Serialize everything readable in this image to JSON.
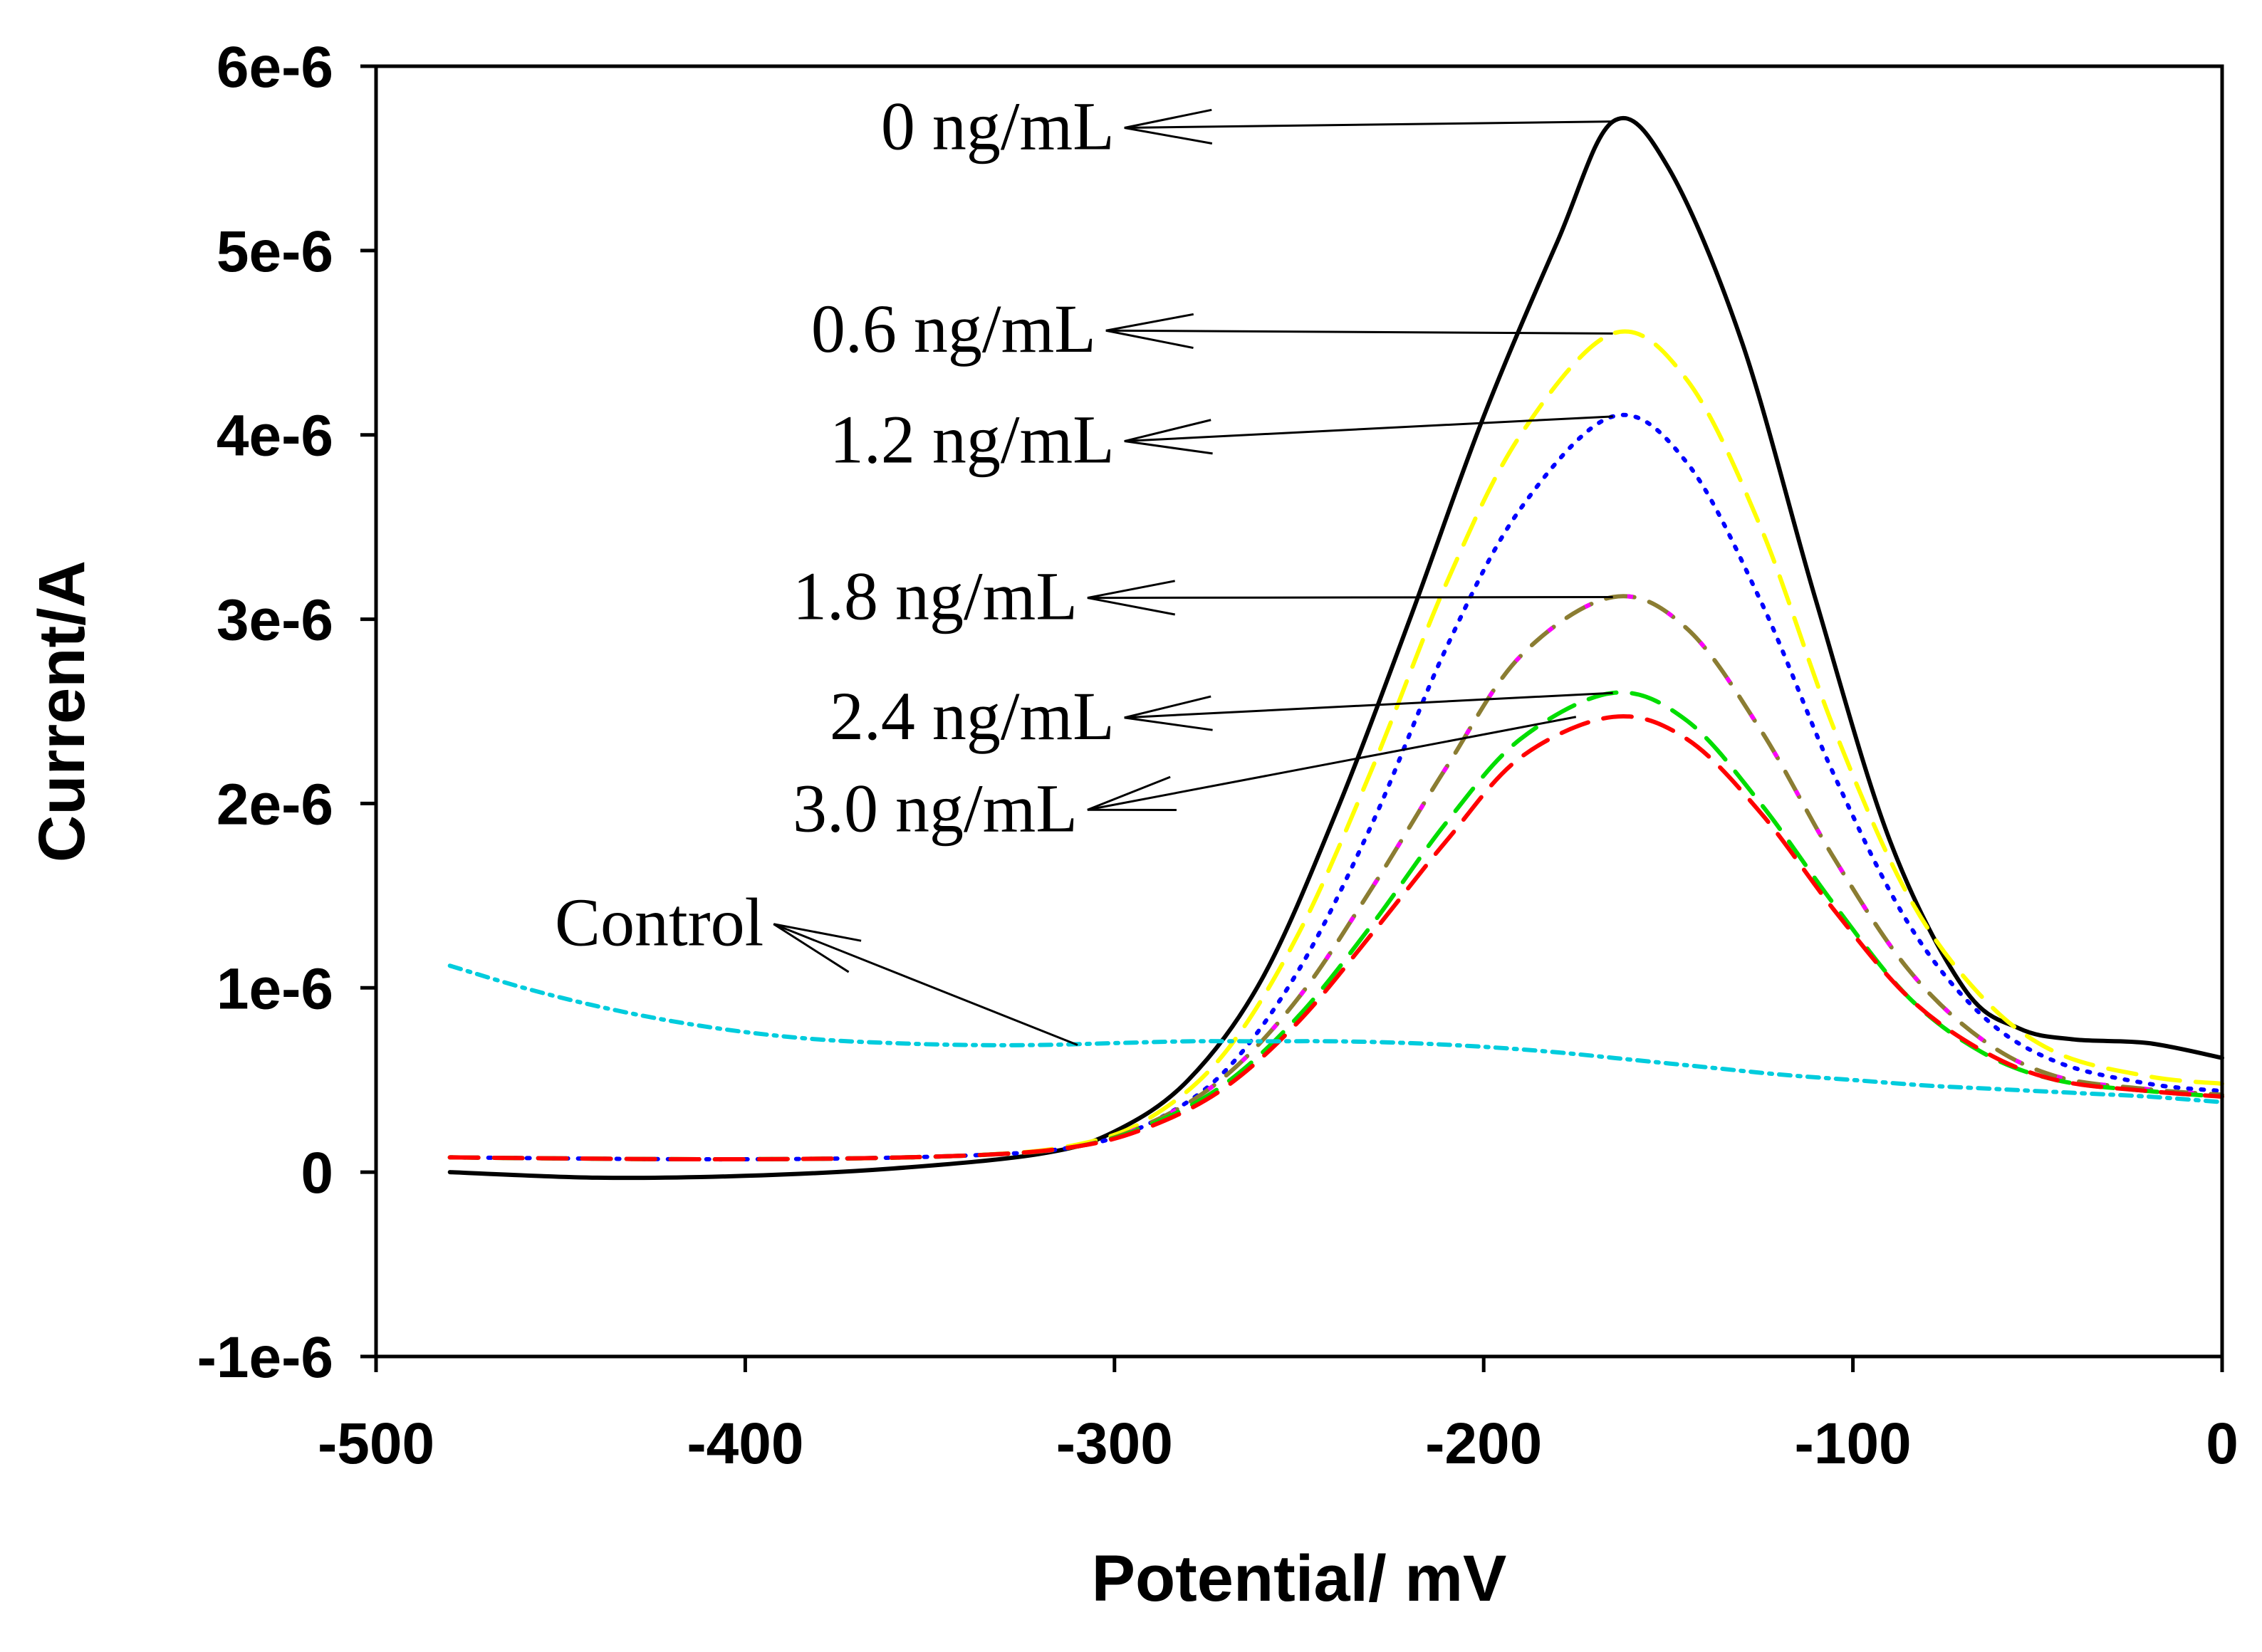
{
  "chart_data": {
    "type": "line",
    "title": "",
    "xlabel": "Potential/ mV",
    "ylabel": "Current/A",
    "xlim": [
      -500,
      0
    ],
    "ylim": [
      -1e-06,
      6e-06
    ],
    "x_ticks": [
      {
        "value": -500,
        "label": "-500"
      },
      {
        "value": -400,
        "label": "-400"
      },
      {
        "value": -300,
        "label": "-300"
      },
      {
        "value": -200,
        "label": "-200"
      },
      {
        "value": -100,
        "label": "-100"
      },
      {
        "value": 0,
        "label": "0"
      }
    ],
    "y_ticks": [
      {
        "value": -1e-06,
        "label": "-1e-6"
      },
      {
        "value": 0,
        "label": "0"
      },
      {
        "value": 1e-06,
        "label": "1e-6"
      },
      {
        "value": 2e-06,
        "label": "2e-6"
      },
      {
        "value": 3e-06,
        "label": "3e-6"
      },
      {
        "value": 4e-06,
        "label": "4e-6"
      },
      {
        "value": 5e-06,
        "label": "5e-6"
      },
      {
        "value": 6e-06,
        "label": "6e-6"
      }
    ],
    "grid": false,
    "series": [
      {
        "name": "0 ng/mL",
        "color": "#000000",
        "style": "solid",
        "points": [
          [
            -480,
            0.0
          ],
          [
            -440,
            -3e-08
          ],
          [
            -400,
            -2e-08
          ],
          [
            -360,
            2e-08
          ],
          [
            -320,
            1e-07
          ],
          [
            -300,
            2.2e-07
          ],
          [
            -280,
            5e-07
          ],
          [
            -260,
            1.05e-06
          ],
          [
            -240,
            1.95e-06
          ],
          [
            -220,
            3e-06
          ],
          [
            -200,
            4.1e-06
          ],
          [
            -180,
            5.05e-06
          ],
          [
            -165,
            5.7e-06
          ],
          [
            -150,
            5.45e-06
          ],
          [
            -130,
            4.5e-06
          ],
          [
            -110,
            3.1e-06
          ],
          [
            -90,
            1.8e-06
          ],
          [
            -70,
            1e-06
          ],
          [
            -55,
            7.8e-07
          ],
          [
            -40,
            7.2e-07
          ],
          [
            -20,
            7e-07
          ],
          [
            0,
            6.2e-07
          ]
        ]
      },
      {
        "name": "0.6 ng/mL",
        "color": "#ffff00",
        "style": "dashed",
        "points": [
          [
            -480,
            8e-08
          ],
          [
            -400,
            7e-08
          ],
          [
            -340,
            9e-08
          ],
          [
            -310,
            1.5e-07
          ],
          [
            -290,
            3e-07
          ],
          [
            -270,
            6.5e-07
          ],
          [
            -250,
            1.3e-06
          ],
          [
            -230,
            2.2e-06
          ],
          [
            -210,
            3.2e-06
          ],
          [
            -190,
            4e-06
          ],
          [
            -165,
            4.55e-06
          ],
          [
            -145,
            4.3e-06
          ],
          [
            -125,
            3.5e-06
          ],
          [
            -105,
            2.4e-06
          ],
          [
            -85,
            1.5e-06
          ],
          [
            -65,
            9.5e-07
          ],
          [
            -45,
            6.5e-07
          ],
          [
            -20,
            5.2e-07
          ],
          [
            0,
            4.8e-07
          ]
        ]
      },
      {
        "name": "1.2 ng/mL",
        "color": "#0000ff",
        "style": "dotted",
        "points": [
          [
            -480,
            8e-08
          ],
          [
            -400,
            7e-08
          ],
          [
            -340,
            9e-08
          ],
          [
            -310,
            1.4e-07
          ],
          [
            -290,
            2.7e-07
          ],
          [
            -270,
            5.5e-07
          ],
          [
            -250,
            1.1e-06
          ],
          [
            -230,
            1.9e-06
          ],
          [
            -210,
            2.85e-06
          ],
          [
            -190,
            3.6e-06
          ],
          [
            -165,
            4.1e-06
          ],
          [
            -145,
            3.85e-06
          ],
          [
            -125,
            3.1e-06
          ],
          [
            -105,
            2.15e-06
          ],
          [
            -85,
            1.35e-06
          ],
          [
            -65,
            8.5e-07
          ],
          [
            -45,
            6e-07
          ],
          [
            -20,
            4.8e-07
          ],
          [
            0,
            4.4e-07
          ]
        ]
      },
      {
        "name": "1.8 ng/mL",
        "color": "#8b7d32",
        "style": "dashed",
        "points": [
          [
            -480,
            8e-08
          ],
          [
            -400,
            7e-08
          ],
          [
            -340,
            9e-08
          ],
          [
            -310,
            1.4e-07
          ],
          [
            -290,
            2.7e-07
          ],
          [
            -270,
            5.2e-07
          ],
          [
            -250,
            9.5e-07
          ],
          [
            -230,
            1.55e-06
          ],
          [
            -210,
            2.2e-06
          ],
          [
            -190,
            2.8e-06
          ],
          [
            -165,
            3.12e-06
          ],
          [
            -145,
            2.95e-06
          ],
          [
            -125,
            2.4e-06
          ],
          [
            -105,
            1.7e-06
          ],
          [
            -85,
            1.1e-06
          ],
          [
            -65,
            7.2e-07
          ],
          [
            -45,
            5.2e-07
          ],
          [
            -20,
            4.5e-07
          ],
          [
            0,
            4.2e-07
          ]
        ]
      },
      {
        "name": "2.4 ng/mL",
        "color": "#00dd00",
        "style": "dashed",
        "points": [
          [
            -480,
            8e-08
          ],
          [
            -400,
            7e-08
          ],
          [
            -340,
            9e-08
          ],
          [
            -310,
            1.4e-07
          ],
          [
            -290,
            2.6e-07
          ],
          [
            -270,
            4.8e-07
          ],
          [
            -250,
            8.5e-07
          ],
          [
            -230,
            1.35e-06
          ],
          [
            -210,
            1.9e-06
          ],
          [
            -190,
            2.35e-06
          ],
          [
            -165,
            2.6e-06
          ],
          [
            -145,
            2.45e-06
          ],
          [
            -125,
            2e-06
          ],
          [
            -105,
            1.45e-06
          ],
          [
            -85,
            9.5e-07
          ],
          [
            -65,
            6.5e-07
          ],
          [
            -45,
            5e-07
          ],
          [
            -20,
            4.4e-07
          ],
          [
            0,
            4.1e-07
          ]
        ]
      },
      {
        "name": "3.0 ng/mL",
        "color": "#ff0000",
        "style": "dashed",
        "points": [
          [
            -480,
            8e-08
          ],
          [
            -400,
            7e-08
          ],
          [
            -340,
            9e-08
          ],
          [
            -310,
            1.4e-07
          ],
          [
            -290,
            2.5e-07
          ],
          [
            -270,
            4.6e-07
          ],
          [
            -250,
            8.2e-07
          ],
          [
            -230,
            1.3e-06
          ],
          [
            -210,
            1.8e-06
          ],
          [
            -190,
            2.25e-06
          ],
          [
            -165,
            2.47e-06
          ],
          [
            -145,
            2.35e-06
          ],
          [
            -125,
            1.95e-06
          ],
          [
            -105,
            1.42e-06
          ],
          [
            -85,
            9.5e-07
          ],
          [
            -65,
            6.6e-07
          ],
          [
            -45,
            5e-07
          ],
          [
            -20,
            4.4e-07
          ],
          [
            0,
            4.1e-07
          ]
        ]
      },
      {
        "name": "Control",
        "color": "#00ccdd",
        "style": "dashdot",
        "points": [
          [
            -480,
            1.12e-06
          ],
          [
            -460,
            1e-06
          ],
          [
            -440,
            9e-07
          ],
          [
            -420,
            8.2e-07
          ],
          [
            -400,
            7.6e-07
          ],
          [
            -380,
            7.2e-07
          ],
          [
            -360,
            7e-07
          ],
          [
            -340,
            6.9e-07
          ],
          [
            -320,
            6.9e-07
          ],
          [
            -300,
            7e-07
          ],
          [
            -280,
            7.1e-07
          ],
          [
            -260,
            7.1e-07
          ],
          [
            -240,
            7.1e-07
          ],
          [
            -220,
            7e-07
          ],
          [
            -200,
            6.8e-07
          ],
          [
            -180,
            6.5e-07
          ],
          [
            -160,
            6.1e-07
          ],
          [
            -140,
            5.7e-07
          ],
          [
            -120,
            5.3e-07
          ],
          [
            -100,
            5e-07
          ],
          [
            -80,
            4.7e-07
          ],
          [
            -60,
            4.5e-07
          ],
          [
            -40,
            4.3e-07
          ],
          [
            -20,
            4.1e-07
          ],
          [
            0,
            3.8e-07
          ]
        ]
      }
    ],
    "annotations": [
      {
        "text": "0 ng/mL",
        "text_at": [
          -300,
          5.55e-06
        ],
        "point_to": [
          -165,
          5.7e-06
        ]
      },
      {
        "text": "0.6 ng/mL",
        "text_at": [
          -305,
          4.45e-06
        ],
        "point_to": [
          -165,
          4.55e-06
        ]
      },
      {
        "text": "1.2 ng/mL",
        "text_at": [
          -300,
          3.85e-06
        ],
        "point_to": [
          -165,
          4.1e-06
        ]
      },
      {
        "text": "1.8 ng/mL",
        "text_at": [
          -310,
          3e-06
        ],
        "point_to": [
          -165,
          3.12e-06
        ]
      },
      {
        "text": "2.4 ng/mL",
        "text_at": [
          -300,
          2.35e-06
        ],
        "point_to": [
          -165,
          2.6e-06
        ]
      },
      {
        "text": "3.0 ng/mL",
        "text_at": [
          -310,
          1.85e-06
        ],
        "point_to": [
          -175,
          2.47e-06
        ]
      },
      {
        "text": "Control",
        "text_at": [
          -395,
          1.23e-06
        ],
        "point_to": [
          -310,
          6.9e-07
        ]
      }
    ]
  }
}
